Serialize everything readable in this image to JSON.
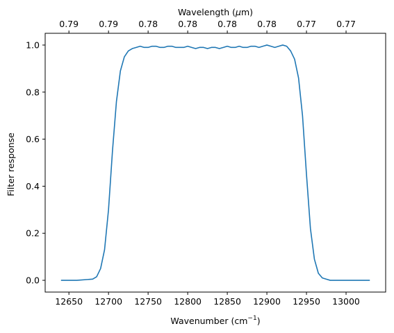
{
  "chart_data": {
    "type": "line",
    "xlabel": "Wavenumber (cm",
    "xlabel_sup": "−1",
    "xlabel_tail": ")",
    "ylabel": "Filter response",
    "top_xlabel": "Wavelength (",
    "top_xlabel_unit": "μ",
    "top_xlabel_tail": "m)",
    "xlim": [
      12620,
      13050
    ],
    "ylim": [
      -0.05,
      1.05
    ],
    "x_ticks": [
      12650,
      12700,
      12750,
      12800,
      12850,
      12900,
      12950,
      13000
    ],
    "y_ticks": [
      0.0,
      0.2,
      0.4,
      0.6,
      0.8,
      1.0
    ],
    "y_tick_labels": [
      "0.0",
      "0.2",
      "0.4",
      "0.6",
      "0.8",
      "1.0"
    ],
    "top_x_ticks": [
      12650,
      12700,
      12750,
      12800,
      12850,
      12900,
      12950,
      13000
    ],
    "top_x_tick_labels": [
      "0.79",
      "0.79",
      "0.78",
      "0.78",
      "0.78",
      "0.78",
      "0.77",
      "0.77"
    ],
    "grid": false,
    "legend": "none",
    "series": [
      {
        "color": "#1f77b4",
        "x": [
          12640,
          12660,
          12680,
          12685,
          12690,
          12695,
          12700,
          12705,
          12710,
          12715,
          12720,
          12725,
          12730,
          12735,
          12740,
          12745,
          12750,
          12755,
          12760,
          12765,
          12770,
          12775,
          12780,
          12785,
          12790,
          12795,
          12800,
          12805,
          12810,
          12815,
          12820,
          12825,
          12830,
          12835,
          12840,
          12845,
          12850,
          12855,
          12860,
          12865,
          12870,
          12875,
          12880,
          12885,
          12890,
          12895,
          12900,
          12905,
          12910,
          12915,
          12920,
          12925,
          12930,
          12935,
          12940,
          12945,
          12950,
          12955,
          12960,
          12965,
          12970,
          12975,
          12980,
          12990,
          13000,
          13010,
          13030
        ],
        "y": [
          0.0,
          0.0,
          0.005,
          0.015,
          0.05,
          0.13,
          0.3,
          0.55,
          0.76,
          0.89,
          0.95,
          0.975,
          0.985,
          0.99,
          0.995,
          0.99,
          0.99,
          0.995,
          0.995,
          0.99,
          0.99,
          0.995,
          0.995,
          0.99,
          0.99,
          0.99,
          0.995,
          0.99,
          0.985,
          0.99,
          0.99,
          0.985,
          0.99,
          0.99,
          0.985,
          0.99,
          0.995,
          0.99,
          0.99,
          0.995,
          0.99,
          0.99,
          0.995,
          0.995,
          0.99,
          0.995,
          1.0,
          0.995,
          0.99,
          0.995,
          1.0,
          0.995,
          0.975,
          0.94,
          0.86,
          0.7,
          0.45,
          0.22,
          0.09,
          0.03,
          0.01,
          0.005,
          0.0,
          0.0,
          0.0,
          0.0,
          0.0
        ]
      }
    ]
  }
}
